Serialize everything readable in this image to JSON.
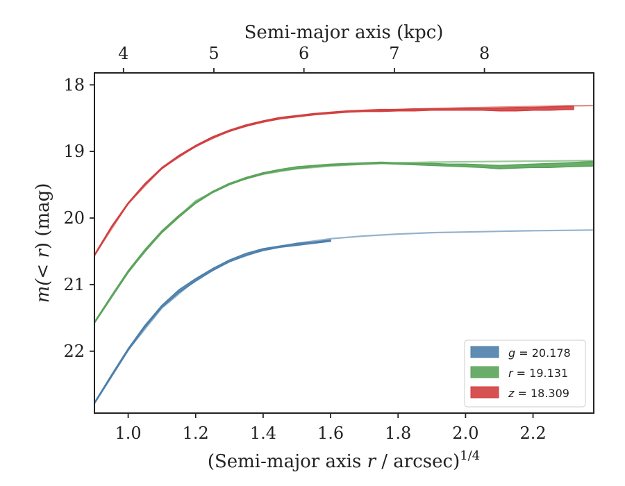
{
  "chart_data": {
    "type": "line",
    "xlabel_prefix": "(Semi-major axis ",
    "xlabel_var": "r",
    "xlabel_suffix": " / arcsec)",
    "xlabel_exponent": "1/4",
    "ylabel_prefix": "m(",
    "ylabel_var": "< r",
    "ylabel_suffix": ") (mag)",
    "top_xlabel": "Semi-major axis (kpc)",
    "xlim": [
      0.9,
      2.38
    ],
    "ylim": [
      22.93,
      17.82
    ],
    "y_inverted": true,
    "x_ticks": [
      {
        "value": 1.0,
        "label": "1.0"
      },
      {
        "value": 1.2,
        "label": "1.2"
      },
      {
        "value": 1.4,
        "label": "1.4"
      },
      {
        "value": 1.6,
        "label": "1.6"
      },
      {
        "value": 1.8,
        "label": "1.8"
      },
      {
        "value": 2.0,
        "label": "2.0"
      },
      {
        "value": 2.2,
        "label": "2.2"
      }
    ],
    "y_ticks": [
      {
        "value": 18,
        "label": "18"
      },
      {
        "value": 19,
        "label": "19"
      },
      {
        "value": 20,
        "label": "20"
      },
      {
        "value": 21,
        "label": "21"
      },
      {
        "value": 22,
        "label": "22"
      }
    ],
    "top_ticks": [
      {
        "value": 0.986,
        "label": "4"
      },
      {
        "value": 1.254,
        "label": "5"
      },
      {
        "value": 1.521,
        "label": "6"
      },
      {
        "value": 1.789,
        "label": "7"
      },
      {
        "value": 2.056,
        "label": "8"
      }
    ],
    "legend_position": "bottom-right",
    "series": [
      {
        "key": "g",
        "legend_var": "g",
        "legend_value": "= 20.178",
        "color": "#4c7fab",
        "data_x": [
          0.9,
          0.95,
          1.0,
          1.05,
          1.1,
          1.15,
          1.2,
          1.25,
          1.3,
          1.35,
          1.4,
          1.45,
          1.5,
          1.55,
          1.6
        ],
        "data_lo": [
          22.79,
          22.39,
          21.99,
          21.64,
          21.34,
          21.12,
          20.95,
          20.79,
          20.66,
          20.56,
          20.49,
          20.44,
          20.41,
          20.38,
          20.35
        ],
        "data_hi": [
          22.77,
          22.36,
          21.96,
          21.61,
          21.31,
          21.08,
          20.91,
          20.76,
          20.63,
          20.53,
          20.46,
          20.42,
          20.38,
          20.36,
          20.33
        ],
        "model_x": [
          0.9,
          1.0,
          1.1,
          1.2,
          1.3,
          1.4,
          1.5,
          1.6,
          1.7,
          1.8,
          1.9,
          2.0,
          2.1,
          2.2,
          2.3,
          2.38
        ],
        "model_y": [
          22.78,
          21.98,
          21.35,
          20.93,
          20.65,
          20.48,
          20.38,
          20.31,
          20.27,
          20.24,
          20.22,
          20.21,
          20.2,
          20.19,
          20.185,
          20.18
        ]
      },
      {
        "key": "r",
        "legend_var": "r",
        "legend_value": "= 19.131",
        "color": "#5aa45a",
        "data_x": [
          0.9,
          0.95,
          1.0,
          1.05,
          1.1,
          1.15,
          1.2,
          1.25,
          1.3,
          1.35,
          1.4,
          1.45,
          1.5,
          1.55,
          1.6,
          1.65,
          1.7,
          1.75,
          1.8,
          1.85,
          1.9,
          1.95,
          2.0,
          2.05,
          2.1,
          2.15,
          2.2,
          2.25,
          2.3,
          2.38
        ],
        "data_lo": [
          21.58,
          21.2,
          20.82,
          20.5,
          20.22,
          19.99,
          19.78,
          19.62,
          19.5,
          19.41,
          19.34,
          19.29,
          19.26,
          19.23,
          19.21,
          19.2,
          19.19,
          19.18,
          19.19,
          19.2,
          19.21,
          19.22,
          19.23,
          19.24,
          19.26,
          19.25,
          19.24,
          19.24,
          19.23,
          19.22
        ],
        "data_hi": [
          21.56,
          21.17,
          20.79,
          20.47,
          20.19,
          19.96,
          19.76,
          19.6,
          19.48,
          19.39,
          19.32,
          19.27,
          19.23,
          19.21,
          19.19,
          19.18,
          19.17,
          19.16,
          19.17,
          19.18,
          19.18,
          19.19,
          19.19,
          19.2,
          19.21,
          19.2,
          19.19,
          19.18,
          19.17,
          19.15
        ],
        "model_x": [
          0.9,
          1.0,
          1.1,
          1.2,
          1.3,
          1.4,
          1.5,
          1.6,
          1.7,
          1.8,
          1.9,
          2.0,
          2.1,
          2.2,
          2.3,
          2.38
        ],
        "model_y": [
          21.57,
          20.8,
          20.21,
          19.74,
          19.48,
          19.34,
          19.26,
          19.22,
          19.19,
          19.17,
          19.16,
          19.155,
          19.15,
          19.145,
          19.14,
          19.135
        ]
      },
      {
        "key": "z",
        "legend_var": "z",
        "legend_value": "= 18.309",
        "color": "#d23f3f",
        "data_x": [
          0.9,
          0.95,
          1.0,
          1.05,
          1.1,
          1.15,
          1.2,
          1.25,
          1.3,
          1.35,
          1.4,
          1.45,
          1.5,
          1.55,
          1.6,
          1.65,
          1.7,
          1.75,
          1.8,
          1.85,
          1.9,
          1.95,
          2.0,
          2.05,
          2.1,
          2.15,
          2.2,
          2.25,
          2.3,
          2.32
        ],
        "data_lo": [
          20.57,
          20.15,
          19.79,
          19.5,
          19.26,
          19.08,
          18.93,
          18.8,
          18.7,
          18.62,
          18.56,
          18.51,
          18.48,
          18.45,
          18.43,
          18.41,
          18.4,
          18.4,
          18.39,
          18.39,
          18.38,
          18.38,
          18.38,
          18.38,
          18.39,
          18.39,
          18.38,
          18.38,
          18.37,
          18.37
        ],
        "data_hi": [
          20.55,
          20.13,
          19.77,
          19.48,
          19.24,
          19.06,
          18.91,
          18.78,
          18.68,
          18.6,
          18.54,
          18.49,
          18.46,
          18.43,
          18.41,
          18.39,
          18.38,
          18.37,
          18.37,
          18.36,
          18.36,
          18.36,
          18.35,
          18.35,
          18.35,
          18.34,
          18.34,
          18.33,
          18.32,
          18.32
        ],
        "model_x": [
          0.9,
          1.0,
          1.1,
          1.2,
          1.3,
          1.4,
          1.5,
          1.6,
          1.7,
          1.8,
          1.9,
          2.0,
          2.1,
          2.2,
          2.3,
          2.38
        ],
        "model_y": [
          20.56,
          19.78,
          19.25,
          18.92,
          18.69,
          18.55,
          18.47,
          18.42,
          18.39,
          18.37,
          18.355,
          18.345,
          18.335,
          18.325,
          18.315,
          18.31
        ]
      }
    ]
  }
}
